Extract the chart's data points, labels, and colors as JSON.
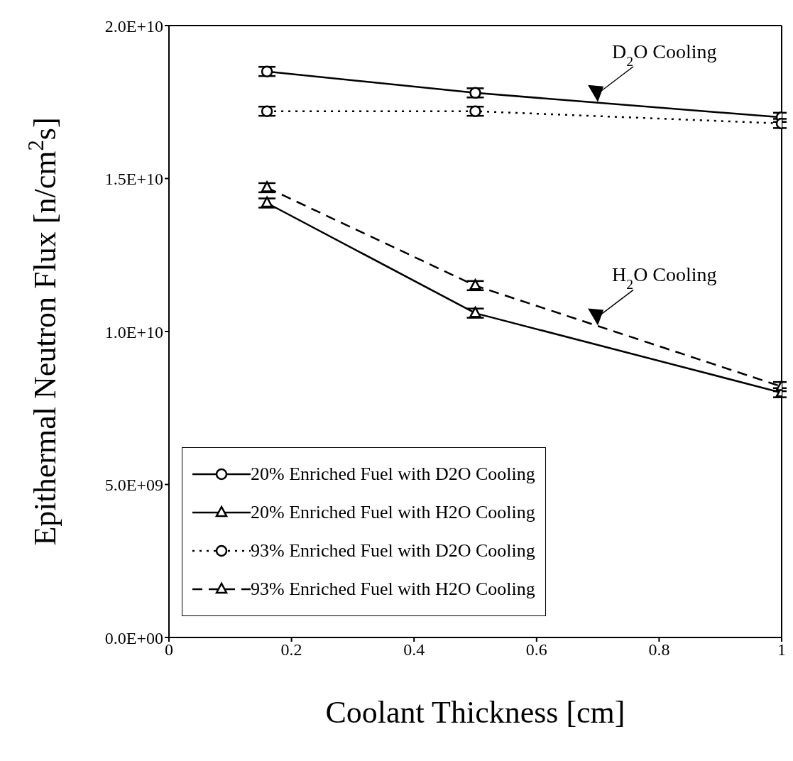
{
  "chart_data": {
    "type": "line",
    "xlabel": "Coolant Thickness [cm]",
    "ylabel": "Epithermal Neutron Flux   [n/cm$^{2}$s]",
    "x": [
      0.16,
      0.5,
      1
    ],
    "series": [
      {
        "name": "20% Enriched Fuel with D2O Cooling",
        "color": "#000000",
        "values": [
          18500000000.0,
          17800000000.0,
          17000000000.0
        ],
        "errors": [
          150000000.0,
          150000000.0,
          150000000.0
        ],
        "marker": "circle",
        "line_style": "solid"
      },
      {
        "name": "20% Enriched Fuel with H2O Cooling",
        "color": "#000000",
        "values": [
          14200000000.0,
          10600000000.0,
          8000000000.0
        ],
        "errors": [
          150000000.0,
          150000000.0,
          150000000.0
        ],
        "marker": "triangle",
        "line_style": "solid"
      },
      {
        "name": "93% Enriched Fuel with D2O Cooling",
        "color": "#000000",
        "values": [
          17200000000.0,
          17200000000.0,
          16800000000.0
        ],
        "errors": [
          150000000.0,
          150000000.0,
          150000000.0
        ],
        "marker": "circle",
        "line_style": "dotted"
      },
      {
        "name": "93% Enriched Fuel with H2O Cooling",
        "color": "#000000",
        "values": [
          14700000000.0,
          11500000000.0,
          8200000000.0
        ],
        "errors": [
          150000000.0,
          150000000.0,
          150000000.0
        ],
        "marker": "triangle",
        "line_style": "dashed"
      }
    ],
    "xlim": [
      0,
      1
    ],
    "xticks": [
      0,
      0.2,
      0.4,
      0.6,
      0.8,
      1
    ],
    "ylim": [
      0,
      20000000000.0
    ],
    "yticks": [
      {
        "value": 0,
        "label": "0.0E+00"
      },
      {
        "value": 5000000000.0,
        "label": "5.0E+09"
      },
      {
        "value": 10000000000.0,
        "label": "1.0E+10"
      },
      {
        "value": 15000000000.0,
        "label": "1.5E+10"
      },
      {
        "value": 20000000000.0,
        "label": "2.0E+10"
      }
    ],
    "annotations": [
      {
        "text": "D$_{2}$O Cooling",
        "x": 0.7,
        "y": 17500000000.0
      },
      {
        "text": "H$_{2}$O Cooling",
        "x": 0.7,
        "y": 10200000000.0
      }
    ],
    "grid": false,
    "legend": "bottom left"
  }
}
